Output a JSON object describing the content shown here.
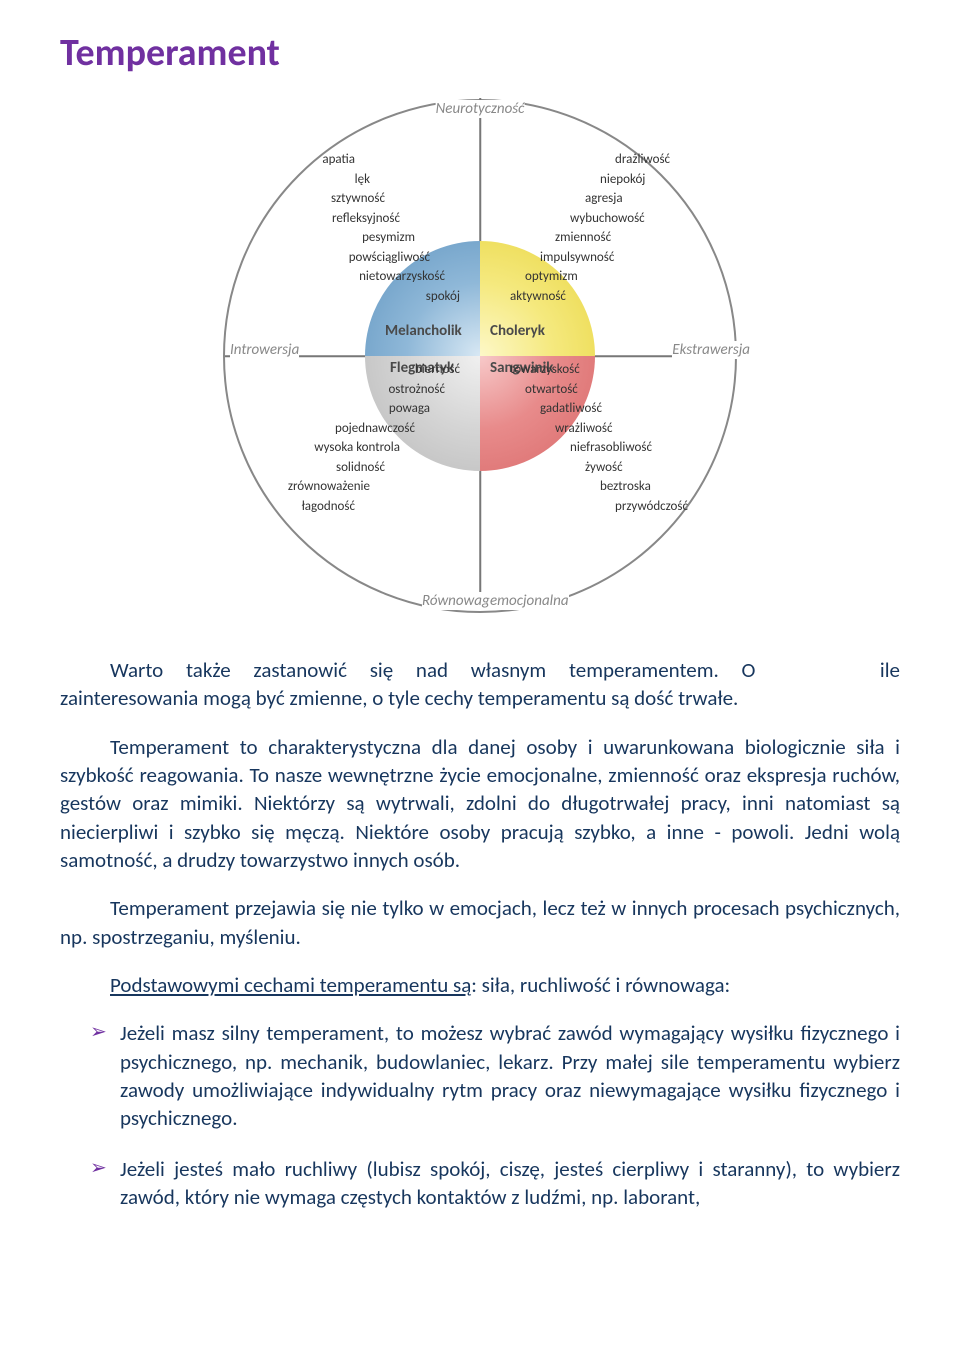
{
  "title": "Temperament",
  "title_color": "#7030a0",
  "body_color": "#17365d",
  "diagram": {
    "axis_top": "Neurotyczność",
    "axis_bottom_1": "Równowaga",
    "axis_bottom_2": "emocjonalna",
    "axis_left": "Introwersja",
    "axis_right": "Ekstrawersja",
    "quadrants": {
      "tl": {
        "label": "Melancholik",
        "fill": "#8fb8d8",
        "shade": "radial-gradient(circle at 100% 100%, #d8e8f4 0%, #8fb8d8 45%, #6095c0 100%)"
      },
      "tr": {
        "label": "Choleryk",
        "fill": "#f5e97e",
        "shade": "radial-gradient(circle at 0% 100%, #fdf8c8 0%, #f5e97e 45%, #e8d540 100%)"
      },
      "bl": {
        "label": "Flegmatyk",
        "fill": "#d5d5d5",
        "shade": "radial-gradient(circle at 100% 0%, #f0f0f0 0%, #d5d5d5 45%, #b8b8b8 100%)"
      },
      "br": {
        "label": "Sangwinik",
        "fill": "#e88b8b",
        "shade": "radial-gradient(circle at 0% 0%, #f7c9c9 0%, #e88b8b 45%, #d86868 100%)"
      }
    },
    "traits_tl": [
      "apatia",
      "lęk",
      "sztywność",
      "refleksyjność",
      "pesymizm",
      "powściągliwość",
      "nietowarzyskość",
      "spokój"
    ],
    "traits_tr": [
      "drażliwość",
      "niepokój",
      "agresja",
      "wybuchowość",
      "zmienność",
      "impulsywność",
      "optymizm",
      "aktywność"
    ],
    "traits_bl": [
      "bierność",
      "ostrożność",
      "powaga",
      "pojednawczość",
      "wysoka kontrola",
      "solidność",
      "zrównoważenie",
      "łagodność"
    ],
    "traits_br": [
      "towarzyskość",
      "otwartość",
      "gadatliwość",
      "wrażliwość",
      "niefrasobliwość",
      "żywość",
      "beztroska",
      "przywódczość"
    ]
  },
  "para1_a": "Warto także zastanowić się nad własnym temperamentem. O",
  "para1_b": "ile zainteresowania mogą być zmienne, o tyle cechy temperamentu są dość trwałe.",
  "para2": "Temperament to charakterystyczna dla danej osoby i uwarunkowana biologicznie siła i szybkość reagowania. To nasze wewnętrzne życie emocjonalne, zmienność oraz ekspresja ruchów, gestów oraz mimiki. Niektórzy są wytrwali, zdolni do długotrwałej pracy, inni natomiast są niecierpliwi i szybko się męczą. Niektóre osoby pracują szybko, a inne - powoli. Jedni wolą samotność, a drudzy towarzystwo innych osób.",
  "para3": "Temperament przejawia się nie tylko w emocjach, lecz też w innych procesach psychicznych, np. spostrzeganiu, myśleniu.",
  "para4_u": "Podstawowymi cechami temperamentu są",
  "para4_rest": ": siła, ruchliwość i równowaga:",
  "bullet1": "Jeżeli masz silny temperament, to możesz wybrać zawód wymagający wysiłku fizycznego i psychicznego, np. mechanik, budowlaniec, lekarz. Przy małej sile temperamentu wybierz zawody umożliwiające indywidualny rytm pracy oraz niewymagające wysiłku fizycznego i psychicznego.",
  "bullet2": "Jeżeli jesteś mało ruchliwy (lubisz spokój, ciszę, jesteś cierpliwy i staranny), to wybierz zawód, który nie wymaga częstych kontaktów z ludźmi, np. laborant,"
}
